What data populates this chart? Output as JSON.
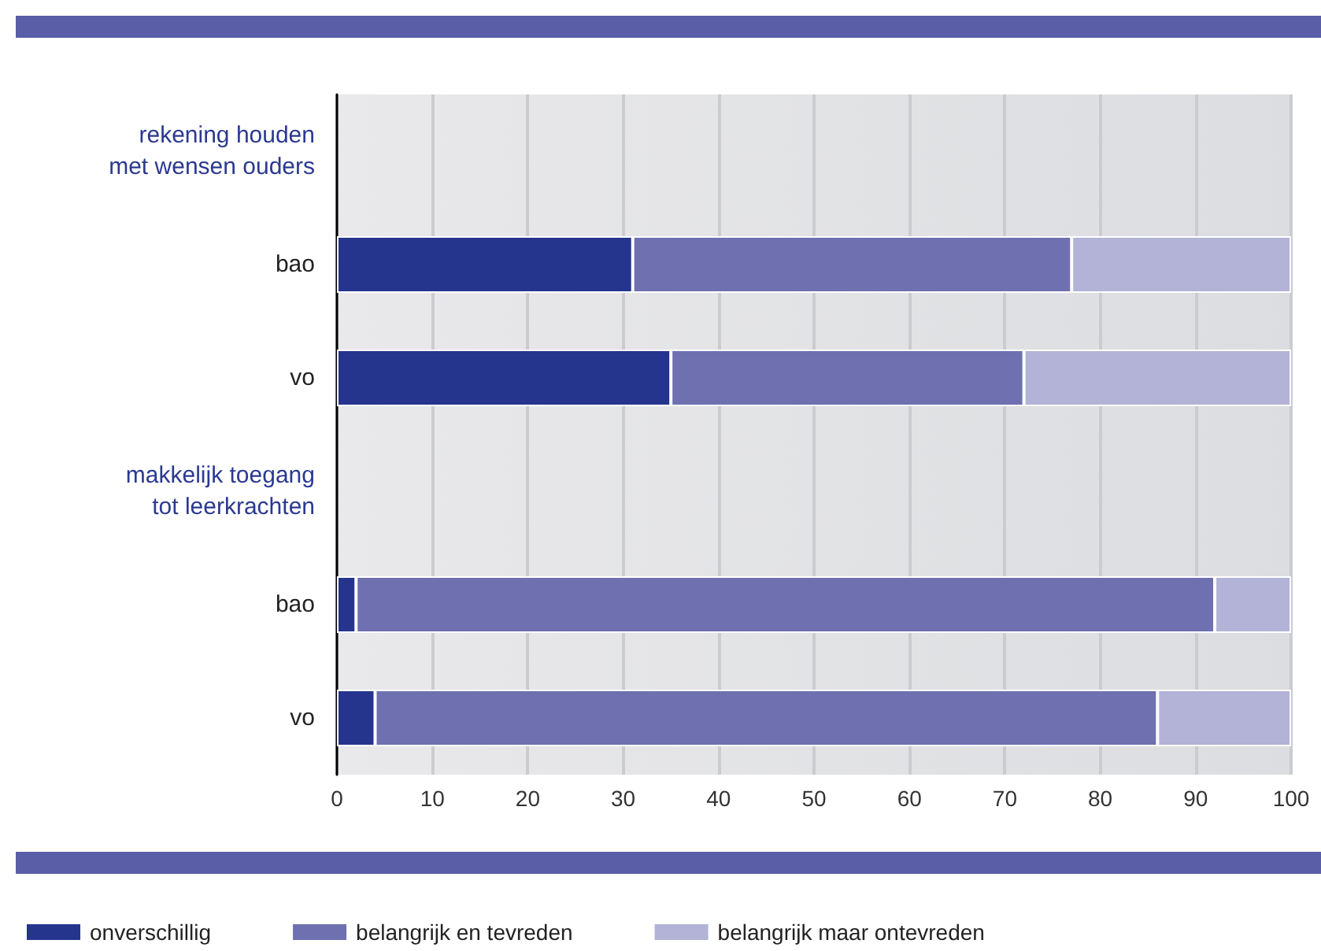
{
  "chart_data": {
    "type": "bar",
    "orientation": "horizontal",
    "stacked": true,
    "categories": [
      "rekening houden\nmet wensen ouders",
      "bao",
      "vo",
      "makkelijk toegang\ntot leerkrachten",
      "bao",
      "vo"
    ],
    "series": [
      {
        "name": "onverschillig",
        "color": "#25358e",
        "values": [
          null,
          31,
          35,
          null,
          2,
          4
        ]
      },
      {
        "name": "belangrijk en tevreden",
        "color": "#6e70b0",
        "values": [
          null,
          46,
          37,
          null,
          90,
          82
        ]
      },
      {
        "name": "belangrijk maar ontevreden",
        "color": "#b3b3d7",
        "values": [
          null,
          23,
          28,
          null,
          8,
          14
        ]
      }
    ],
    "xlim": [
      0,
      100
    ],
    "xticks": [
      0,
      10,
      20,
      30,
      40,
      50,
      60,
      70,
      80,
      90,
      100
    ],
    "grid": "x",
    "legend": "bottom left"
  }
}
